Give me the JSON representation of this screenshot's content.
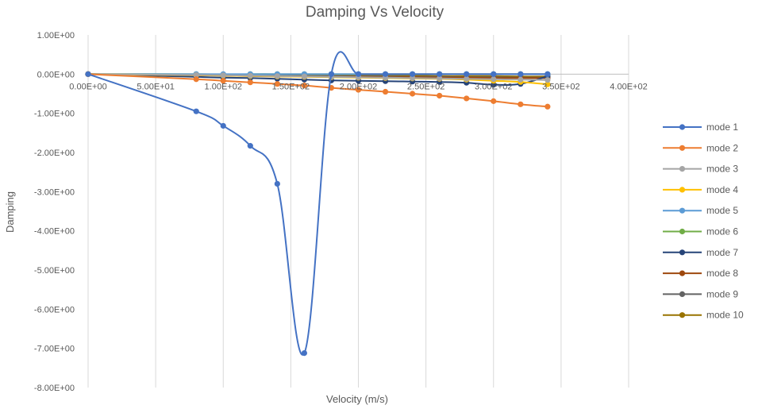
{
  "chart_data": {
    "type": "line",
    "title": "Damping Vs Velocity",
    "xlabel": "Velocity (m/s)",
    "ylabel": "Damping",
    "xlim": [
      0,
      400
    ],
    "ylim": [
      -8,
      1
    ],
    "x_ticks": [
      {
        "value": 0,
        "label": "0.00E+00"
      },
      {
        "value": 50,
        "label": "5.00E+01"
      },
      {
        "value": 100,
        "label": "1.00E+02"
      },
      {
        "value": 150,
        "label": "1.50E+02"
      },
      {
        "value": 200,
        "label": "2.00E+02"
      },
      {
        "value": 250,
        "label": "2.50E+02"
      },
      {
        "value": 300,
        "label": "3.00E+02"
      },
      {
        "value": 350,
        "label": "3.50E+02"
      },
      {
        "value": 400,
        "label": "4.00E+02"
      }
    ],
    "y_ticks": [
      {
        "value": 1,
        "label": "1.00E+00"
      },
      {
        "value": 0,
        "label": "0.00E+00"
      },
      {
        "value": -1,
        "label": "-1.00E+00"
      },
      {
        "value": -2,
        "label": "-2.00E+00"
      },
      {
        "value": -3,
        "label": "-3.00E+00"
      },
      {
        "value": -4,
        "label": "-4.00E+00"
      },
      {
        "value": -5,
        "label": "-5.00E+00"
      },
      {
        "value": -6,
        "label": "-6.00E+00"
      },
      {
        "value": -7,
        "label": "-7.00E+00"
      },
      {
        "value": -8,
        "label": "-8.00E+00"
      }
    ],
    "grid": {
      "vertical": true,
      "horizontal": false
    },
    "legend_position": "right",
    "series": [
      {
        "name": "mode 1",
        "color": "#4472C4",
        "x": [
          0,
          80,
          100,
          120,
          140,
          160,
          180,
          200,
          220,
          240,
          260,
          280,
          300,
          320,
          340
        ],
        "y": [
          0,
          -0.95,
          -1.32,
          -1.83,
          -2.8,
          -7.12,
          0.0,
          0.0,
          0.0,
          0.0,
          0.0,
          0.0,
          0.0,
          0.0,
          0.0
        ]
      },
      {
        "name": "mode 2",
        "color": "#ED7D31",
        "x": [
          0,
          80,
          100,
          120,
          140,
          160,
          180,
          200,
          220,
          240,
          260,
          280,
          300,
          320,
          340
        ],
        "y": [
          0,
          -0.13,
          -0.17,
          -0.21,
          -0.25,
          -0.29,
          -0.35,
          -0.4,
          -0.45,
          -0.5,
          -0.55,
          -0.62,
          -0.69,
          -0.77,
          -0.83
        ]
      },
      {
        "name": "mode 3",
        "color": "#A5A5A5",
        "x": [
          0,
          80,
          100,
          120,
          140,
          160,
          180,
          200,
          220,
          240,
          260,
          280,
          300,
          320,
          340
        ],
        "y": [
          0,
          -0.02,
          -0.03,
          -0.04,
          -0.05,
          -0.06,
          -0.07,
          -0.08,
          -0.09,
          -0.1,
          -0.11,
          -0.12,
          -0.13,
          -0.14,
          -0.15
        ]
      },
      {
        "name": "mode 4",
        "color": "#FFC000",
        "x": [
          0,
          80,
          100,
          120,
          140,
          160,
          180,
          200,
          220,
          240,
          260,
          280,
          300,
          320,
          340
        ],
        "y": [
          0,
          -0.03,
          -0.04,
          -0.05,
          -0.06,
          -0.07,
          -0.08,
          -0.09,
          -0.1,
          -0.11,
          -0.12,
          -0.14,
          -0.17,
          -0.2,
          -0.26
        ]
      },
      {
        "name": "mode 5",
        "color": "#5B9BD5",
        "x": [
          0,
          80,
          100,
          120,
          140,
          160,
          180,
          200,
          220,
          240,
          260,
          280,
          300,
          320,
          340
        ],
        "y": [
          0,
          0.0,
          0.0,
          0.0,
          0.0,
          0.0,
          0.0,
          0.0,
          0.0,
          0.0,
          0.0,
          0.0,
          0.0,
          0.0,
          0.0
        ]
      },
      {
        "name": "mode 6",
        "color": "#70AD47",
        "x": [
          0,
          80,
          100,
          120,
          140,
          160,
          180,
          200,
          220,
          240,
          260,
          280,
          300,
          320,
          340
        ],
        "y": [
          0,
          0.0,
          -0.01,
          0.0,
          0.0,
          0.0,
          0.0,
          0.0,
          0.0,
          0.0,
          0.0,
          0.0,
          0.0,
          0.0,
          0.0
        ]
      },
      {
        "name": "mode 7",
        "color": "#264478",
        "x": [
          0,
          80,
          100,
          120,
          140,
          160,
          180,
          200,
          220,
          240,
          260,
          280,
          300,
          320,
          340
        ],
        "y": [
          0,
          -0.07,
          -0.09,
          -0.1,
          -0.12,
          -0.14,
          -0.16,
          -0.17,
          -0.18,
          -0.19,
          -0.2,
          -0.22,
          -0.27,
          -0.25,
          -0.05
        ]
      },
      {
        "name": "mode 8",
        "color": "#9E480E",
        "x": [
          0,
          80,
          100,
          120,
          140,
          160,
          180,
          200,
          220,
          240,
          260,
          280,
          300,
          320,
          340
        ],
        "y": [
          0,
          -0.03,
          -0.04,
          -0.05,
          -0.06,
          -0.06,
          -0.07,
          -0.07,
          -0.08,
          -0.08,
          -0.09,
          -0.09,
          -0.1,
          -0.1,
          -0.1
        ]
      },
      {
        "name": "mode 9",
        "color": "#636363",
        "x": [
          0,
          80,
          100,
          120,
          140,
          160,
          180,
          200,
          220,
          240,
          260,
          280,
          300,
          320,
          340
        ],
        "y": [
          0,
          -0.02,
          -0.03,
          -0.04,
          -0.04,
          -0.05,
          -0.05,
          -0.06,
          -0.06,
          -0.07,
          -0.07,
          -0.08,
          -0.08,
          -0.09,
          -0.09
        ]
      },
      {
        "name": "mode 10",
        "color": "#997300",
        "x": [
          0,
          80,
          100,
          120,
          140,
          160,
          180,
          200,
          220,
          240,
          260,
          280,
          300,
          320,
          340
        ],
        "y": [
          0,
          -0.01,
          -0.02,
          -0.02,
          -0.03,
          -0.03,
          -0.03,
          -0.04,
          -0.04,
          -0.04,
          -0.05,
          -0.05,
          -0.05,
          -0.06,
          -0.06
        ]
      }
    ]
  }
}
